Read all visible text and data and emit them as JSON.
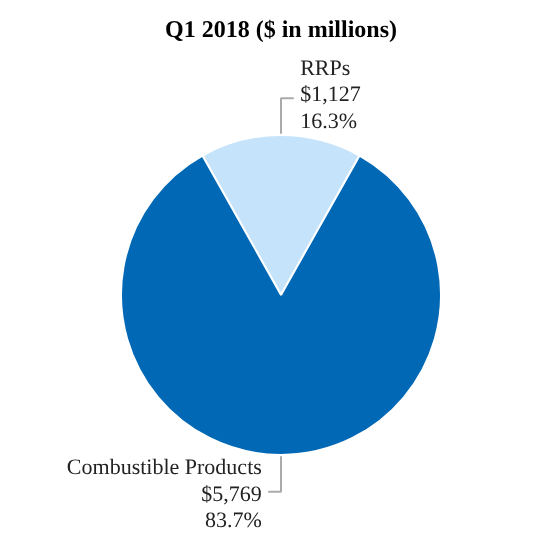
{
  "chart_data": {
    "type": "pie",
    "title": "Q1 2018 ($ in millions)",
    "categories": [
      "RRPs",
      "Combustible Products"
    ],
    "values": [
      1127,
      5769
    ],
    "colors": [
      "#c5e4fb",
      "#0068b5"
    ],
    "value_labels": [
      "$1,127\n16.3%",
      "$5,769\n83.7%"
    ]
  }
}
